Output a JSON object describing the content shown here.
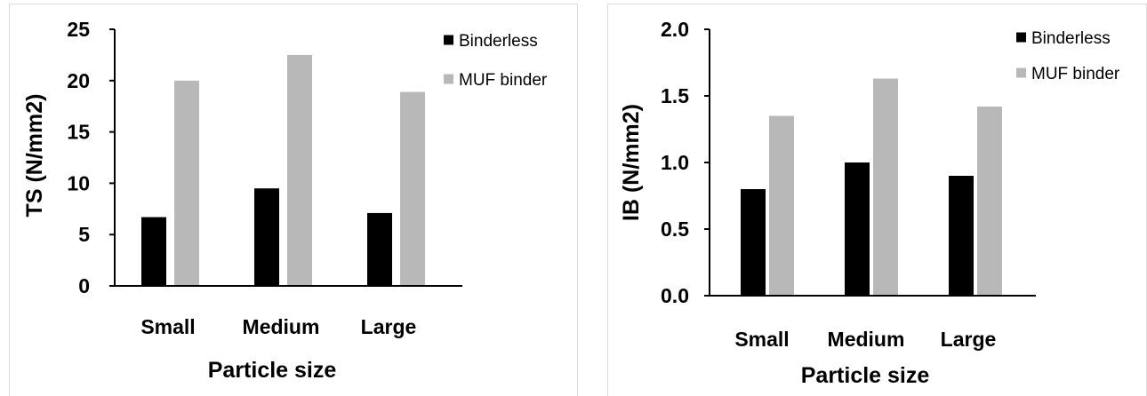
{
  "chart_data": [
    {
      "type": "bar",
      "title": "",
      "xlabel": "Particle size",
      "ylabel": "TS (N/mm2)",
      "categories": [
        "Small",
        "Medium",
        "Large"
      ],
      "ylim": [
        0,
        25
      ],
      "yticks": [
        0,
        5,
        10,
        15,
        20,
        25
      ],
      "ytick_labels": [
        "0",
        "5",
        "10",
        "15",
        "20",
        "25"
      ],
      "grid": false,
      "legend_position": "top-right",
      "series": [
        {
          "name": "Binderless",
          "color": "#000000",
          "values": [
            6.7,
            9.5,
            7.1
          ]
        },
        {
          "name": "MUF binder",
          "color": "#b8b8b8",
          "values": [
            20.0,
            22.5,
            18.9
          ]
        }
      ]
    },
    {
      "type": "bar",
      "title": "",
      "xlabel": "Particle size",
      "ylabel": "IB (N/mm2)",
      "categories": [
        "Small",
        "Medium",
        "Large"
      ],
      "ylim": [
        0,
        2.0
      ],
      "yticks": [
        0,
        0.5,
        1.0,
        1.5,
        2.0
      ],
      "ytick_labels": [
        "0.0",
        "0.5",
        "1.0",
        "1.5",
        "2.0"
      ],
      "grid": false,
      "legend_position": "top-right",
      "series": [
        {
          "name": "Binderless",
          "color": "#000000",
          "values": [
            0.8,
            1.0,
            0.9
          ]
        },
        {
          "name": "MUF binder",
          "color": "#b8b8b8",
          "values": [
            1.35,
            1.63,
            1.42
          ]
        }
      ]
    }
  ]
}
